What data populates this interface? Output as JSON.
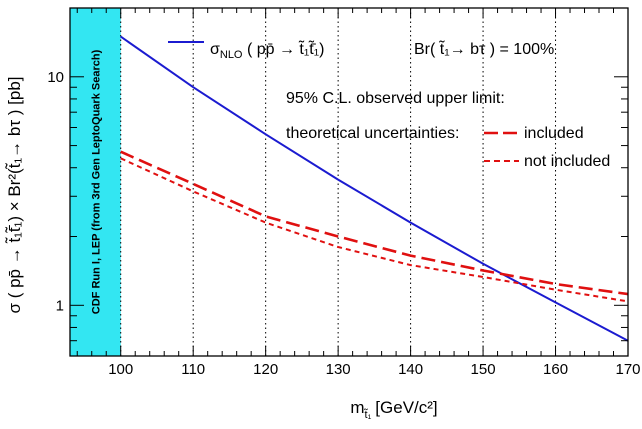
{
  "chart_data": {
    "type": "line",
    "xlabel": "m",
    "xlabel_sub": "t̃₁",
    "xlabel_unit": "[GeV/c²]",
    "ylabel": "σ ( pp̄ → t̃₁t̃̄₁) × Br²(t̃₁→ bτ ) [pb]",
    "xlim": [
      93,
      170
    ],
    "ylim": [
      0.6,
      20
    ],
    "yscale": "log",
    "x_ticks": [
      100,
      110,
      120,
      130,
      140,
      150,
      160,
      170
    ],
    "y_ticks": [
      {
        "value": 1,
        "label": "1"
      },
      {
        "value": 10,
        "label": "10"
      }
    ],
    "grid": "vertical dotted",
    "legend_position": "top-right",
    "excluded_band": {
      "x_range": [
        93,
        100
      ],
      "label": "CDF Run I, LEP (from 3rd Gen LeptoQuark Search)",
      "color": "#33e6f2"
    },
    "branching_label": "Br( t̃₁→ bτ ) = 100%",
    "limit_header": "95% C.L. observed upper limit:",
    "uncert_header": "theoretical uncertainties:",
    "series": [
      {
        "name": "σNLO ( pp̄ → t̃₁t̃̄₁)",
        "label_main": "σ",
        "label_sub": "NLO",
        "label_rest": " ( pp̄ → t̃₁t̃̄₁)",
        "style": "solid",
        "color": "#1b1bd0",
        "x": [
          100,
          110,
          120,
          130,
          140,
          150,
          160,
          170
        ],
        "y": [
          15.0,
          9.0,
          5.6,
          3.55,
          2.3,
          1.52,
          1.03,
          0.7
        ]
      },
      {
        "name": "included",
        "style": "long-dash",
        "color": "#e01010",
        "x": [
          100,
          110,
          120,
          130,
          140,
          150,
          160,
          170
        ],
        "y": [
          4.7,
          3.4,
          2.45,
          2.0,
          1.65,
          1.42,
          1.24,
          1.12
        ]
      },
      {
        "name": "not included",
        "style": "short-dash",
        "color": "#e01010",
        "x": [
          100,
          110,
          120,
          130,
          140,
          150,
          160,
          170
        ],
        "y": [
          4.4,
          3.15,
          2.3,
          1.8,
          1.5,
          1.33,
          1.17,
          1.04
        ]
      }
    ]
  }
}
